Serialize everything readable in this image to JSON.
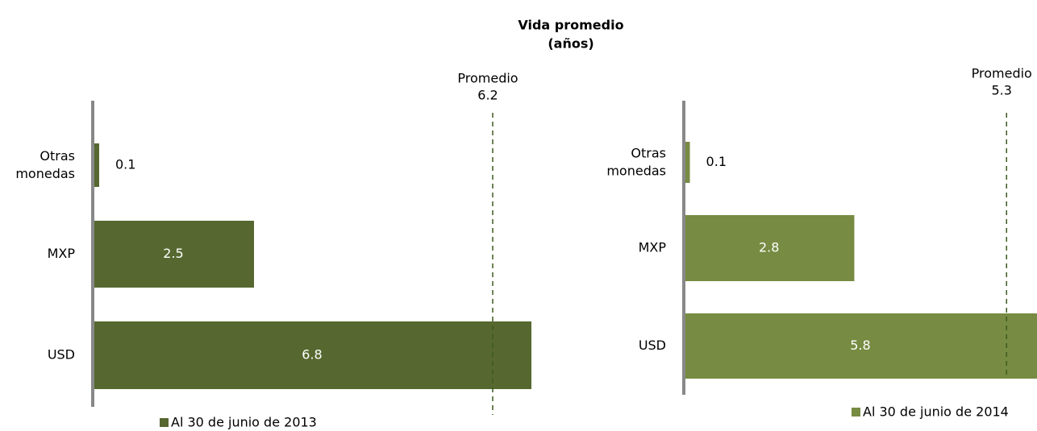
{
  "title": [
    "Vida promedio",
    "(años)"
  ],
  "chart_data": [
    {
      "type": "bar",
      "orientation": "horizontal",
      "categories": [
        "Otras monedas",
        "MXP",
        "USD"
      ],
      "series": [
        {
          "name": "Al 30 de junio de 2013",
          "color": "#56682f",
          "values": [
            0.1,
            2.5,
            6.8
          ]
        }
      ],
      "xlim": [
        0,
        6.8
      ],
      "reference": {
        "label": "Promedio",
        "value": 6.2
      }
    },
    {
      "type": "bar",
      "orientation": "horizontal",
      "categories": [
        "Otras monedas",
        "MXP",
        "USD"
      ],
      "series": [
        {
          "name": "Al 30 de junio de 2014",
          "color": "#778b42",
          "values": [
            0.1,
            2.8,
            5.8
          ]
        }
      ],
      "xlim": [
        0,
        5.8
      ],
      "reference": {
        "label": "Promedio",
        "value": 5.3
      }
    }
  ]
}
